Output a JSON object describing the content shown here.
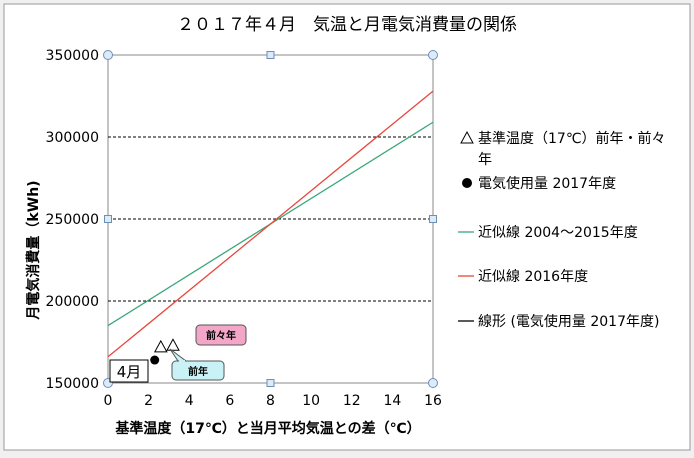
{
  "chart_data": {
    "type": "scatter",
    "title": "２０１７年４月　気温と月電気消費量の関係",
    "xlabel": "基準温度（17℃）と当月平均気温との差（℃）",
    "ylabel": "月電気消費量（kWh)",
    "xlim": [
      0,
      16
    ],
    "ylim": [
      150000,
      350000
    ],
    "x_ticks": [
      "0",
      "2",
      "4",
      "6",
      "8",
      "10",
      "12",
      "14",
      "16"
    ],
    "y_ticks": [
      "150000",
      "200000",
      "250000",
      "300000",
      "350000"
    ],
    "grid": "horizontal dashed",
    "legend_position": "right",
    "colors": {
      "green": "#3aa77a",
      "red": "#e8473c",
      "black": "#000000"
    },
    "series": [
      {
        "name": "基準温度（17℃）前年・前々年",
        "kind": "marker-triangle",
        "points": [
          {
            "x": 2.6,
            "y": 172000
          },
          {
            "x": 3.2,
            "y": 173000
          }
        ]
      },
      {
        "name": "電気使用量 2017年度",
        "kind": "marker-circle",
        "points": [
          {
            "x": 2.3,
            "y": 164000
          }
        ]
      },
      {
        "name": "近似線 2004～2015年度",
        "kind": "line",
        "color": "#3aa77a",
        "points": [
          {
            "x": 0,
            "y": 185000
          },
          {
            "x": 16,
            "y": 309000
          }
        ]
      },
      {
        "name": "近似線 2016年度",
        "kind": "line",
        "color": "#e8473c",
        "points": [
          {
            "x": 0,
            "y": 166000
          },
          {
            "x": 16,
            "y": 328000
          }
        ]
      },
      {
        "name": "線形 (電気使用量 2017年度)",
        "kind": "line",
        "color": "#000000",
        "points": []
      }
    ],
    "legend": [
      {
        "symbol": "triangle",
        "label_line1": "基準温度（17℃）前年・前々",
        "label_line2": "年"
      },
      {
        "symbol": "circle",
        "label_line1": "電気使用量 2017年度"
      },
      {
        "symbol": "line",
        "color": "#3aa77a",
        "label_line1": "近似線 2004～2015年度"
      },
      {
        "symbol": "line",
        "color": "#e8473c",
        "label_line1": "近似線 2016年度"
      },
      {
        "symbol": "line",
        "color": "#000000",
        "label_line1": "線形 (電気使用量 2017年度)"
      }
    ],
    "annotations": [
      {
        "text": "前々年",
        "style": "pink"
      },
      {
        "text": "前年",
        "style": "cyan"
      },
      {
        "text": "4月",
        "style": "box"
      }
    ]
  }
}
